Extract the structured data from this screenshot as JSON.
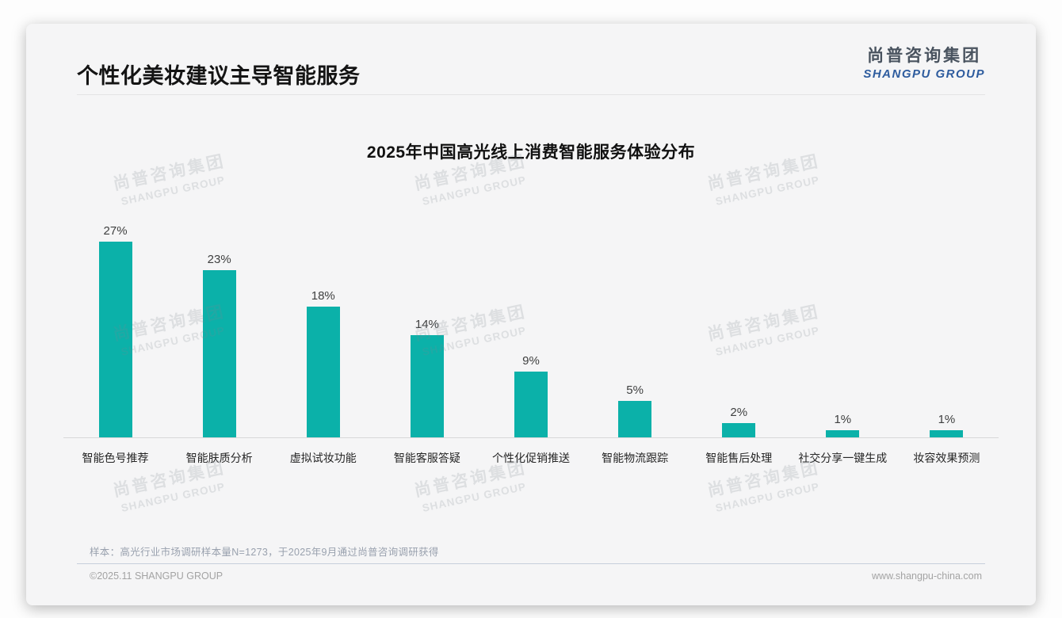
{
  "page": {
    "title": "个性化美妆建议主导智能服务",
    "logo": {
      "cn": "尚普咨询集团",
      "en": "SHANGPU GROUP"
    },
    "watermark": {
      "cn": "尚普咨询集团",
      "en": "SHANGPU GROUP"
    },
    "footer": {
      "note": "样本：高光行业市场调研样本量N=1273，于2025年9月通过尚普咨询调研获得",
      "copyright": "©2025.11 SHANGPU GROUP",
      "website": "www.shangpu-china.com"
    }
  },
  "colors": {
    "bar": "#0BB1A9",
    "logo_blue": "#2E5C9E",
    "value_label": "#3F4040"
  },
  "chart_data": {
    "type": "bar",
    "title": "2025年中国高光线上消费智能服务体验分布",
    "categories": [
      "智能色号推荐",
      "智能肤质分析",
      "虚拟试妆功能",
      "智能客服答疑",
      "个性化促销推送",
      "智能物流跟踪",
      "智能售后处理",
      "社交分享一键生成",
      "妆容效果预测"
    ],
    "values": [
      27,
      23,
      18,
      14,
      9,
      5,
      2,
      1,
      1
    ],
    "unit": "%",
    "value_labels": [
      "27%",
      "23%",
      "18%",
      "14%",
      "9%",
      "5%",
      "2%",
      "1%",
      "1%"
    ],
    "xlabel": "",
    "ylabel": "",
    "ylim": [
      0,
      29
    ],
    "grid": false,
    "legend": "none",
    "bar_color": "#0BB1A9"
  }
}
